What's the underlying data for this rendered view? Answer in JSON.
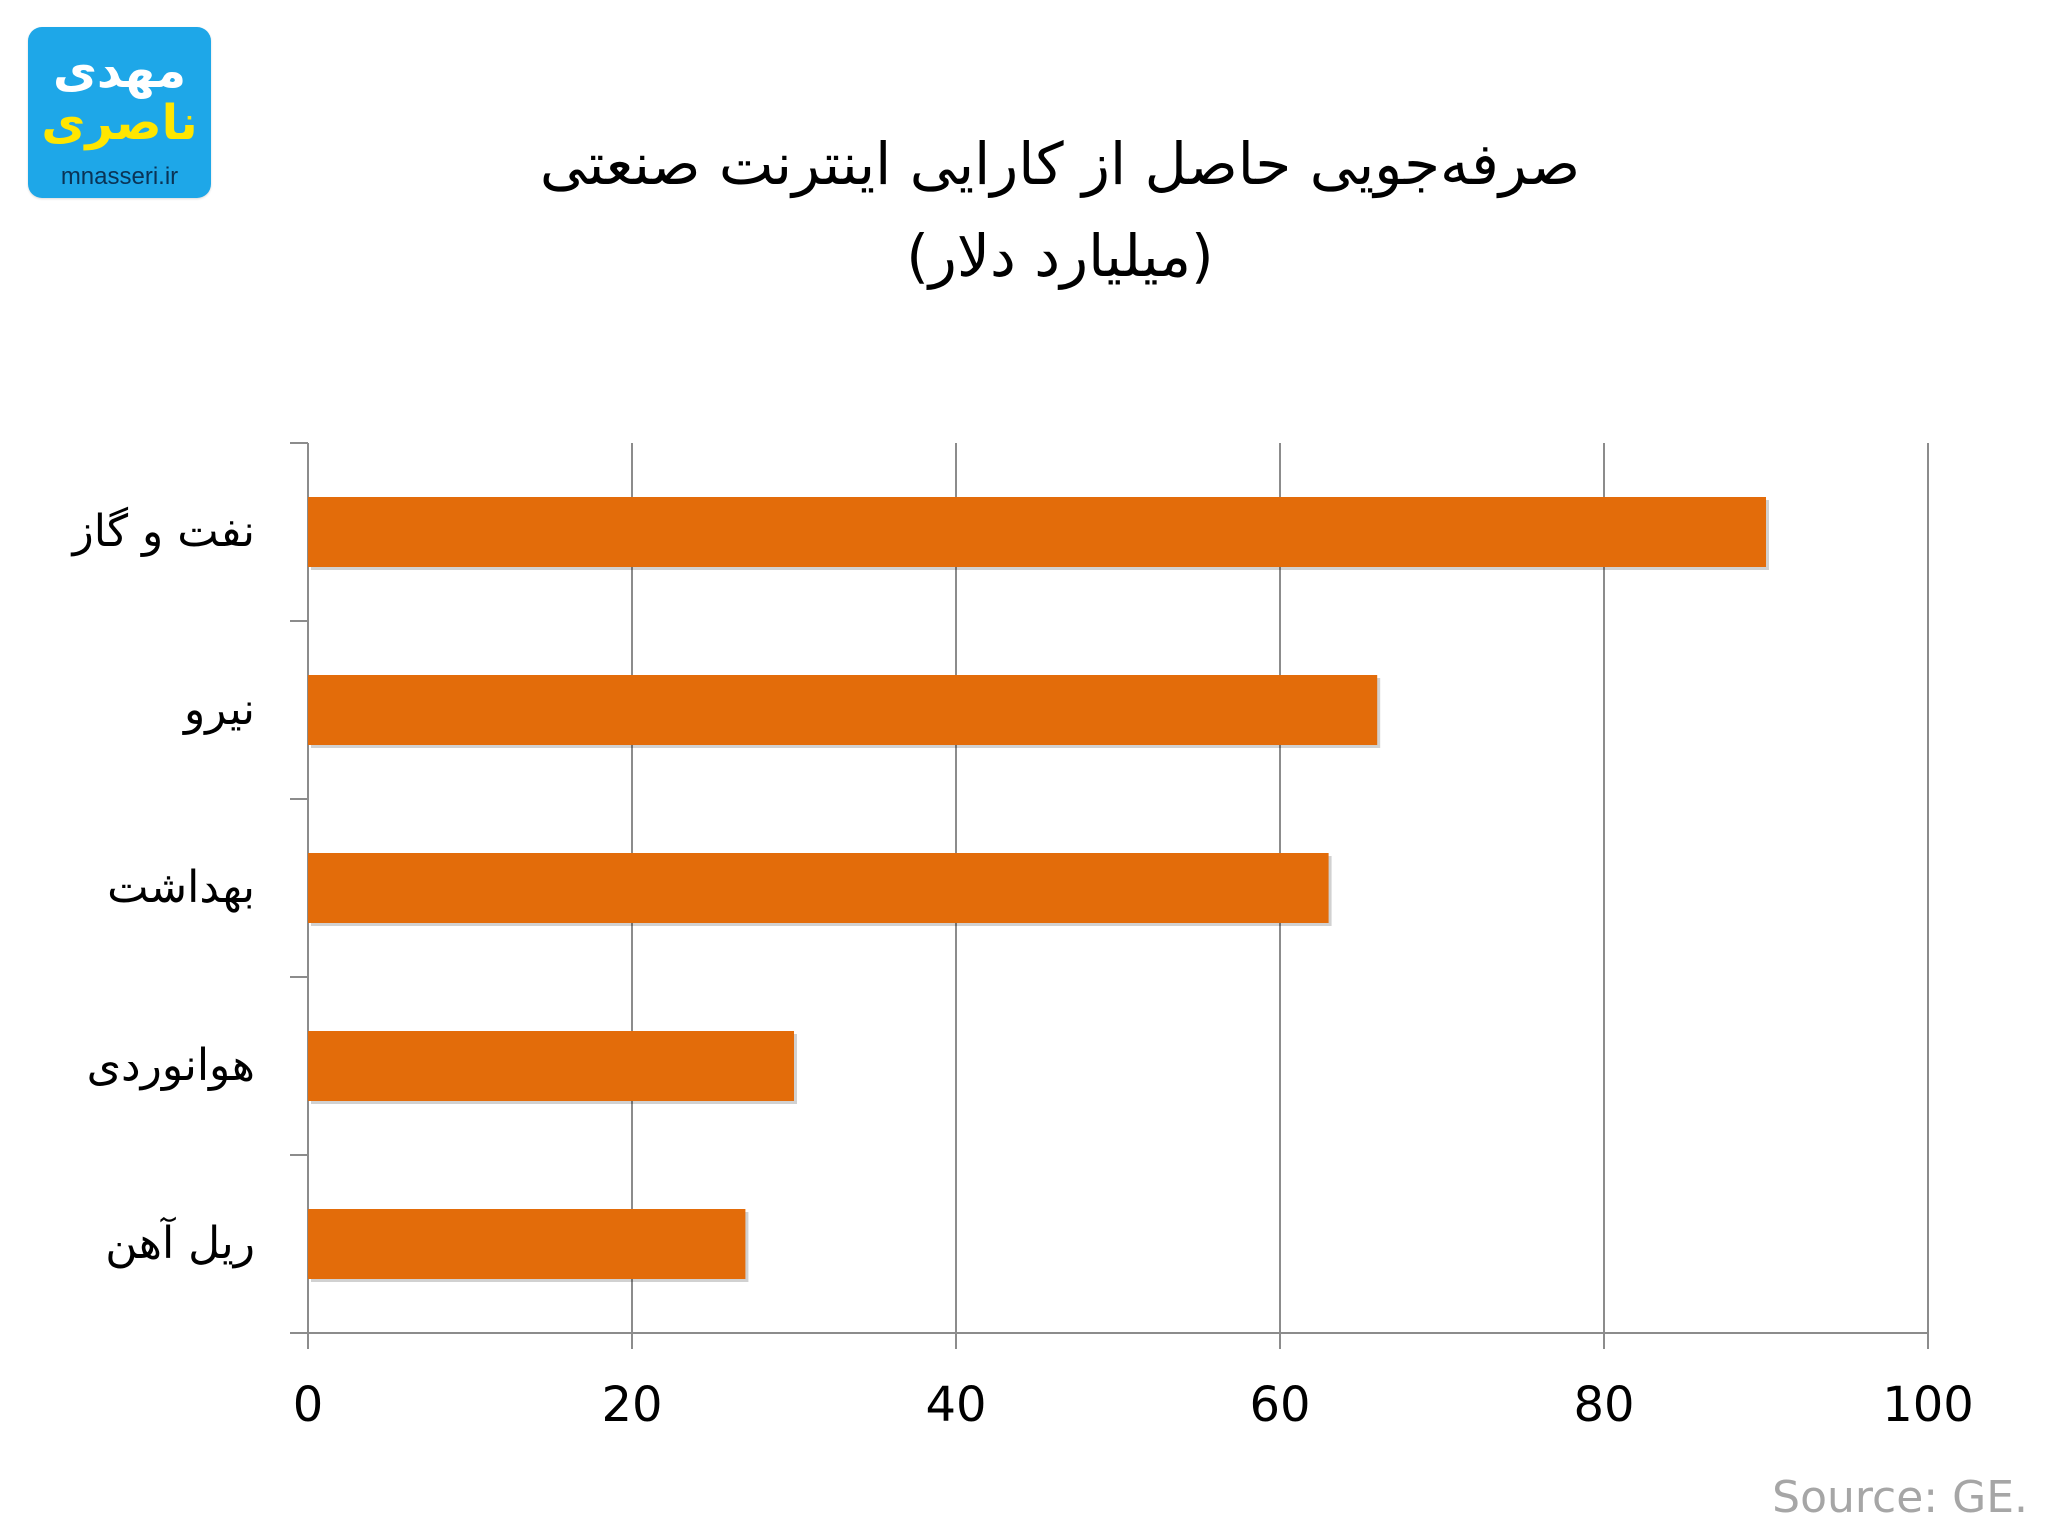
{
  "logo": {
    "line1": "مهدی",
    "line2": "ناصری",
    "url": "mnasseri.ir"
  },
  "title_line1": "صرفه‌جویی حاصل از کارایی اینترنت صنعتی",
  "title_line2": "(میلیارد دلار)",
  "source": "Source: GE.",
  "colors": {
    "bar": "#e36c0a",
    "grid": "#8c8c8c",
    "axis": "#8c8c8c",
    "source_text": "#a6a6a6",
    "logo_bg": "#1ea7e8",
    "logo_line2": "#ffe600"
  },
  "chart_data": {
    "type": "bar",
    "orientation": "horizontal",
    "title": "صرفه‌جویی حاصل از کارایی اینترنت صنعتی (میلیارد دلار)",
    "categories": [
      "نفت و گاز",
      "نیرو",
      "بهداشت",
      "هوانوردی",
      "ریل آهن"
    ],
    "values": [
      90,
      66,
      63,
      30,
      27
    ],
    "xlim": [
      0,
      100
    ],
    "x_ticks": [
      0,
      20,
      40,
      60,
      80,
      100
    ],
    "grid": "vertical",
    "legend": "none"
  }
}
